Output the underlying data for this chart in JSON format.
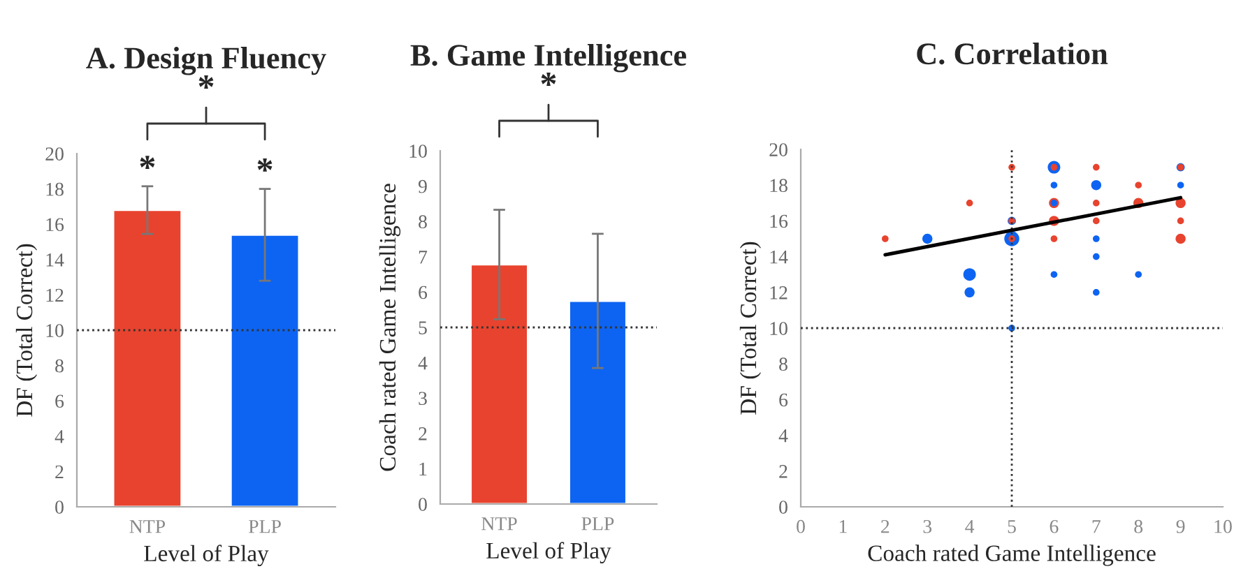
{
  "chart_data": [
    {
      "type": "bar",
      "title": "A. Design Fluency",
      "xlabel": "Level of Play",
      "ylabel": "DF (Total Correct)",
      "categories": [
        "NTP",
        "PLP"
      ],
      "values": [
        16.8,
        15.4
      ],
      "colors": [
        "#e8432e",
        "#0d64f2"
      ],
      "errors": [
        1.35,
        2.6
      ],
      "ylim": [
        0,
        20
      ],
      "yticks": [
        0,
        2,
        4,
        6,
        8,
        10,
        12,
        14,
        16,
        18,
        20
      ],
      "ref_lines": [
        {
          "axis": "y",
          "value": 10,
          "line_style": "dotted",
          "color": "#333333"
        }
      ],
      "annotations": [
        "*",
        {
          "text": "*",
          "x": "NTP",
          "y": 18.15
        },
        {
          "text": "*",
          "x": "PLP",
          "y": 18.0
        }
      ]
    },
    {
      "type": "bar",
      "title": "B. Game Intelligence",
      "xlabel": "Level of Play",
      "ylabel": "Coach rated Game Intelligence",
      "categories": [
        "NTP",
        "PLP"
      ],
      "values": [
        6.78,
        5.75
      ],
      "colors": [
        "#e8432e",
        "#0d64f2"
      ],
      "errors": [
        1.55,
        1.9
      ],
      "ylim": [
        0,
        10
      ],
      "yticks": [
        0,
        1,
        2,
        3,
        4,
        5,
        6,
        7,
        8,
        9,
        10
      ],
      "ref_lines": [
        {
          "axis": "y",
          "value": 5,
          "line_style": "dotted",
          "color": "#333333"
        }
      ],
      "annotations": [
        "*"
      ]
    },
    {
      "type": "bubble",
      "title": "C. Correlation",
      "xlabel": "Coach rated Game Intelligence",
      "ylabel": "DF (Total Correct)",
      "xlim": [
        0,
        10
      ],
      "xticks": [
        0,
        1,
        2,
        3,
        4,
        5,
        6,
        7,
        8,
        9,
        10
      ],
      "ylim": [
        0,
        20
      ],
      "yticks": [
        0,
        2,
        4,
        6,
        8,
        10,
        12,
        14,
        16,
        18,
        20
      ],
      "series": [
        {
          "color": "#0d64f2",
          "x": [
            3,
            4,
            4,
            5,
            5,
            5,
            6,
            6,
            6,
            6,
            7,
            7,
            7,
            7,
            8,
            9,
            9
          ],
          "values": [
            15,
            13,
            12,
            15,
            16,
            10,
            19,
            18,
            17,
            13,
            18,
            15,
            14,
            12,
            13,
            19,
            18
          ],
          "sizes": [
            0.45,
            0.7,
            0.45,
            1,
            0.3,
            0.2,
            0.7,
            0.2,
            0.2,
            0.2,
            0.45,
            0.2,
            0.2,
            0.2,
            0.2,
            0.3,
            0.2
          ]
        },
        {
          "color": "#e8432e",
          "x": [
            2,
            4,
            5,
            5,
            5,
            6,
            6,
            6,
            6,
            7,
            7,
            7,
            8,
            8,
            9,
            9,
            9,
            9
          ],
          "values": [
            15,
            17,
            19,
            16,
            15,
            19,
            17,
            16,
            15,
            19,
            17,
            16,
            18,
            17,
            19,
            17,
            16,
            15
          ],
          "sizes": [
            0.2,
            0.2,
            0.2,
            0.2,
            0.2,
            0.2,
            0.45,
            0.45,
            0.2,
            0.2,
            0.2,
            0.2,
            0.2,
            0.45,
            0.2,
            0.45,
            0.2,
            0.45
          ]
        },
        {
          "type": "line",
          "color": "#000000",
          "x": [
            2,
            9
          ],
          "values": [
            14.1,
            17.3
          ]
        }
      ],
      "ref_lines": [
        {
          "axis": "x",
          "value": 5,
          "line_style": "dotted",
          "color": "#333333"
        },
        {
          "axis": "y",
          "value": 10,
          "line_style": "dotted",
          "color": "#333333"
        }
      ]
    }
  ]
}
